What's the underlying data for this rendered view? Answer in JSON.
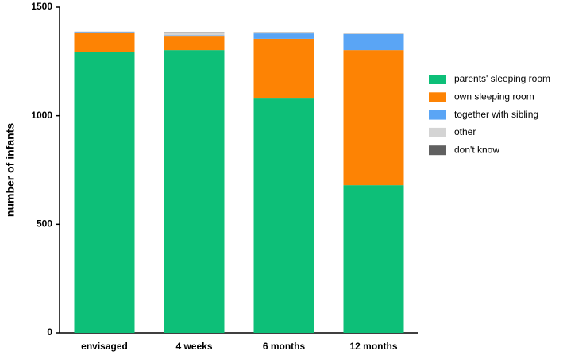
{
  "chart_data": {
    "type": "stacked_bar",
    "y_label": "number of infants",
    "categories": [
      "envisaged",
      "4 weeks",
      "6 months",
      "12 months"
    ],
    "series": [
      {
        "name": "parents' sleeping room",
        "color": "#0dbf78",
        "values": [
          1295,
          1302,
          1079,
          680
        ]
      },
      {
        "name": "own sleeping room",
        "color": "#fd8304",
        "values": [
          85,
          66,
          275,
          622
        ]
      },
      {
        "name": "together with sibling",
        "color": "#5aa5f5",
        "values": [
          5,
          2,
          25,
          74
        ]
      },
      {
        "name": "other",
        "color": "#d4d4d4",
        "values": [
          1,
          15,
          5,
          3
        ]
      },
      {
        "name": "don't know",
        "color": "#606060",
        "values": [
          1,
          1,
          1,
          1
        ]
      }
    ],
    "ylim": [
      0,
      1500
    ],
    "yticks": [
      0,
      500,
      1000,
      1500
    ],
    "grid": false
  }
}
